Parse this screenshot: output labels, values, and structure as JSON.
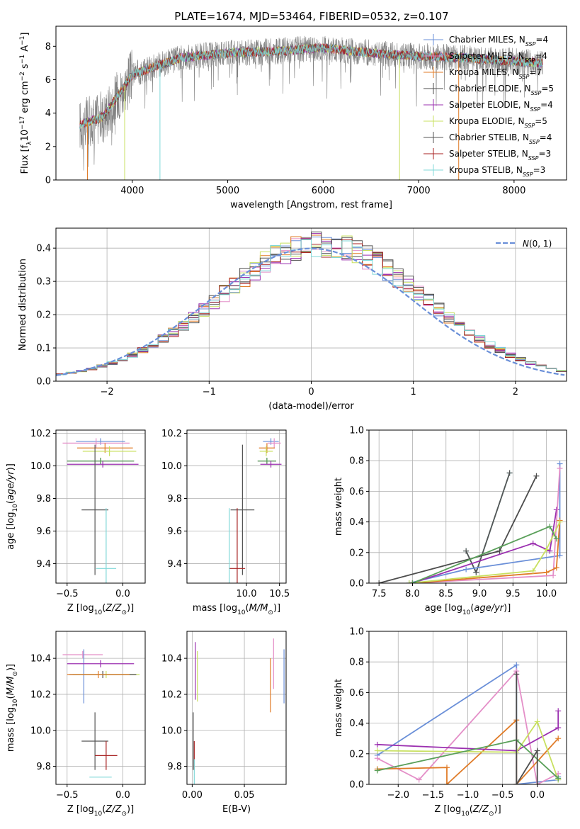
{
  "figure_title": "PLATE=1674, MJD=53464, FIBERID=0532, z=0.107",
  "colors": {
    "blue": "#6a8fd8",
    "pink": "#e48fc8",
    "orange": "#e07b27",
    "darkgray": "#4d4d4d",
    "purple": "#9b30b0",
    "yellowgreen": "#c8e060",
    "gray": "#555555",
    "red": "#a82222",
    "cyan": "#80d8d8",
    "green": "#5aa05a"
  },
  "chart_data": [
    {
      "id": "spectrum",
      "type": "line",
      "title": "PLATE=1674, MJD=53464, FIBERID=0532, z=0.107",
      "xlabel": "wavelength [Angstrom, rest frame]",
      "ylabel": "Flux [f_λ 10^-17 erg cm^-2 s^-1 A^-1]",
      "xlim": [
        3200,
        8550
      ],
      "ylim": [
        0,
        9.2
      ],
      "xticks": [
        "4000",
        "5000",
        "6000",
        "7000",
        "8000"
      ],
      "yticks": [
        "0",
        "2",
        "4",
        "6",
        "8"
      ],
      "continuum": {
        "x": [
          3450,
          3700,
          4000,
          4500,
          5000,
          5500,
          6000,
          6500,
          7000,
          7500,
          8000,
          8300
        ],
        "y": [
          3.3,
          3.8,
          6.3,
          7.3,
          7.6,
          7.7,
          7.9,
          7.6,
          7.4,
          7.3,
          7.1,
          7.0
        ]
      },
      "series": [
        {
          "name": "Chabrier MILES, N_SSP=4",
          "color": "blue"
        },
        {
          "name": "Salpeter MILES, N_SSP=4",
          "color": "pink"
        },
        {
          "name": "Kroupa MILES, N_SSP=7",
          "color": "orange"
        },
        {
          "name": "Chabrier ELODIE, N_SSP=5",
          "color": "darkgray"
        },
        {
          "name": "Salpeter ELODIE, N_SSP=4",
          "color": "purple"
        },
        {
          "name": "Kroupa ELODIE, N_SSP=5",
          "color": "yellowgreen"
        },
        {
          "name": "Chabrier STELIB, N_SSP=4",
          "color": "gray"
        },
        {
          "name": "Salpeter STELIB, N_SSP=3",
          "color": "red"
        },
        {
          "name": "Kroupa STELIB, N_SSP=3",
          "color": "cyan"
        }
      ],
      "legend": "right"
    },
    {
      "id": "residuals",
      "type": "histogram",
      "xlabel": "(data-model)/error",
      "ylabel": "Normed distribution",
      "xlim": [
        -2.5,
        2.5
      ],
      "ylim": [
        0,
        0.46
      ],
      "xticks": [
        "−2",
        "−1",
        "0",
        "1",
        "2"
      ],
      "yticks": [
        "0.0",
        "0.1",
        "0.2",
        "0.3",
        "0.4"
      ],
      "reference": {
        "name": "N(0,1)",
        "color": "blue"
      },
      "legend": "top-right"
    },
    {
      "id": "age-vs-Z",
      "type": "errorbar",
      "xlabel": "Z [log10(Z/Z⊙)]",
      "ylabel": "age  [log10(age/yr)]",
      "xlim": [
        -0.6,
        0.2
      ],
      "ylim": [
        9.28,
        10.22
      ],
      "xticks": [
        "−0.5",
        "0.0"
      ],
      "yticks": [
        "9.4",
        "9.6",
        "9.8",
        "10.0",
        "10.2"
      ],
      "points": [
        {
          "x": -0.2,
          "y": 10.15,
          "xerr": 0.22,
          "yerr": 0.02,
          "color": "blue"
        },
        {
          "x": -0.24,
          "y": 10.14,
          "xerr": 0.3,
          "yerr": 0.03,
          "color": "pink"
        },
        {
          "x": -0.16,
          "y": 10.11,
          "xerr": 0.25,
          "yerr": 0.03,
          "color": "orange"
        },
        {
          "x": -0.12,
          "y": 10.09,
          "xerr": 0.24,
          "yerr": 0.03,
          "color": "yellowgreen"
        },
        {
          "x": -0.2,
          "y": 10.03,
          "xerr": 0.3,
          "yerr": 0.02,
          "color": "darkgray"
        },
        {
          "x": -0.2,
          "y": 10.03,
          "xerr": 0.3,
          "yerr": 0.02,
          "color": "green"
        },
        {
          "x": -0.18,
          "y": 10.01,
          "xerr": 0.32,
          "yerr": 0.02,
          "color": "purple"
        },
        {
          "x": -0.25,
          "y": 9.73,
          "xerr": 0.12,
          "yerr": 0.4,
          "color": "gray"
        },
        {
          "x": -0.15,
          "y": 9.37,
          "xerr": 0.09,
          "yerr": 0.37,
          "color": "cyan"
        }
      ]
    },
    {
      "id": "age-vs-mass",
      "type": "errorbar",
      "xlabel": "mass [log10(M/M⊙)]",
      "ylabel": "",
      "xlim": [
        9.1,
        10.6
      ],
      "ylim": [
        9.28,
        10.22
      ],
      "xticks": [
        "10.0",
        "10.5"
      ],
      "yticks": [
        "9.4",
        "9.6",
        "9.8",
        "10.0",
        "10.2"
      ],
      "points": [
        {
          "x": 10.37,
          "y": 10.15,
          "xerr": 0.12,
          "yerr": 0.02,
          "color": "blue"
        },
        {
          "x": 10.42,
          "y": 10.14,
          "xerr": 0.1,
          "yerr": 0.03,
          "color": "pink"
        },
        {
          "x": 10.31,
          "y": 10.11,
          "xerr": 0.12,
          "yerr": 0.03,
          "color": "orange"
        },
        {
          "x": 10.3,
          "y": 10.09,
          "xerr": 0.1,
          "yerr": 0.03,
          "color": "yellowgreen"
        },
        {
          "x": 10.31,
          "y": 10.03,
          "xerr": 0.14,
          "yerr": 0.02,
          "color": "darkgray"
        },
        {
          "x": 10.31,
          "y": 10.03,
          "xerr": 0.14,
          "yerr": 0.02,
          "color": "green"
        },
        {
          "x": 10.37,
          "y": 10.01,
          "xerr": 0.16,
          "yerr": 0.02,
          "color": "purple"
        },
        {
          "x": 9.94,
          "y": 9.73,
          "xerr": 0.18,
          "yerr": 0.4,
          "color": "gray"
        },
        {
          "x": 9.86,
          "y": 9.37,
          "xerr": 0.12,
          "yerr": 0.37,
          "color": "red"
        },
        {
          "x": 9.74,
          "y": 9.37,
          "xerr": 0.0,
          "yerr": 0.37,
          "color": "cyan"
        }
      ]
    },
    {
      "id": "weight-vs-age",
      "type": "line",
      "xlabel": "age  [log10(age/yr)]",
      "ylabel": "mass weight",
      "xlim": [
        7.35,
        10.3
      ],
      "ylim": [
        0,
        1
      ],
      "xticks": [
        "7.5",
        "8.0",
        "8.5",
        "9.0",
        "9.5",
        "10.0"
      ],
      "yticks": [
        "0.0",
        "0.2",
        "0.4",
        "0.6",
        "0.8",
        "1.0"
      ],
      "series": [
        {
          "color": "cyan",
          "x": [
            8.8,
            8.95,
            9.45
          ],
          "y": [
            0.21,
            0.07,
            0.72
          ]
        },
        {
          "color": "gray",
          "x": [
            8.8,
            8.95,
            9.45
          ],
          "y": [
            0.21,
            0.07,
            0.72
          ]
        },
        {
          "color": "darkgray",
          "x": [
            7.5,
            9.3,
            9.85
          ],
          "y": [
            0.0,
            0.21,
            0.7
          ]
        },
        {
          "color": "blue",
          "x": [
            7.95,
            8.8,
            10.2,
            10.2
          ],
          "y": [
            0.0,
            0.09,
            0.18,
            0.78
          ]
        },
        {
          "color": "purple",
          "x": [
            8.0,
            9.8,
            10.05,
            10.15
          ],
          "y": [
            0.0,
            0.26,
            0.21,
            0.48
          ]
        },
        {
          "color": "pink",
          "x": [
            8.0,
            10.1,
            10.2
          ],
          "y": [
            0.0,
            0.05,
            0.75
          ]
        },
        {
          "color": "orange",
          "x": [
            8.0,
            10.0,
            10.15,
            10.2
          ],
          "y": [
            0.0,
            0.07,
            0.1,
            0.41
          ]
        },
        {
          "color": "yellowgreen",
          "x": [
            7.95,
            9.8,
            10.0,
            10.2
          ],
          "y": [
            0.0,
            0.08,
            0.22,
            0.4
          ]
        },
        {
          "color": "green",
          "x": [
            8.0,
            10.05,
            10.15
          ],
          "y": [
            0.0,
            0.37,
            0.29
          ]
        }
      ]
    },
    {
      "id": "mass-vs-Z",
      "type": "errorbar",
      "xlabel": "Z [log10(Z/Z⊙)]",
      "ylabel": "mass [log10(M/M⊙)]",
      "xlim": [
        -0.6,
        0.2
      ],
      "ylim": [
        9.7,
        10.55
      ],
      "xticks": [
        "−0.5",
        "0.0"
      ],
      "yticks": [
        "9.8",
        "10.0",
        "10.2",
        "10.4"
      ],
      "points": [
        {
          "x": -0.36,
          "y": 10.42,
          "xerr": 0.18,
          "yerr": 0.02,
          "color": "pink"
        },
        {
          "x": -0.35,
          "y": 10.3,
          "xerr": 0.0,
          "yerr": 0.15,
          "color": "blue"
        },
        {
          "x": -0.2,
          "y": 10.37,
          "xerr": 0.3,
          "yerr": 0.02,
          "color": "purple"
        },
        {
          "x": -0.15,
          "y": 10.31,
          "xerr": 0.3,
          "yerr": 0.02,
          "color": "yellowgreen"
        },
        {
          "x": -0.18,
          "y": 10.31,
          "xerr": 0.3,
          "yerr": 0.02,
          "color": "darkgray"
        },
        {
          "x": -0.22,
          "y": 10.31,
          "xerr": 0.28,
          "yerr": 0.02,
          "color": "orange"
        },
        {
          "x": -0.25,
          "y": 9.94,
          "xerr": 0.12,
          "yerr": 0.16,
          "color": "gray"
        },
        {
          "x": -0.15,
          "y": 9.86,
          "xerr": 0.1,
          "yerr": 0.08,
          "color": "red"
        },
        {
          "x": -0.2,
          "y": 9.74,
          "xerr": 0.1,
          "yerr": 0.0,
          "color": "cyan"
        }
      ]
    },
    {
      "id": "mass-vs-ebv",
      "type": "errorbar",
      "xlabel": "E(B-V)",
      "ylabel": "",
      "xlim": [
        -0.005,
        0.09
      ],
      "ylim": [
        9.7,
        10.55
      ],
      "xticks": [
        "0.00",
        "0.05"
      ],
      "yticks": [
        "9.8",
        "10.0",
        "10.2",
        "10.4"
      ],
      "points": [
        {
          "x": 0.003,
          "y": 10.33,
          "yerr": 0.16,
          "color": "purple"
        },
        {
          "x": 0.005,
          "y": 10.3,
          "yerr": 0.14,
          "color": "yellowgreen"
        },
        {
          "x": 0.075,
          "y": 10.25,
          "yerr": 0.15,
          "color": "orange"
        },
        {
          "x": 0.078,
          "y": 10.37,
          "yerr": 0.14,
          "color": "pink"
        },
        {
          "x": 0.088,
          "y": 10.3,
          "yerr": 0.15,
          "color": "blue"
        },
        {
          "x": 0.001,
          "y": 9.94,
          "yerr": 0.16,
          "color": "gray"
        },
        {
          "x": 0.002,
          "y": 9.86,
          "yerr": 0.08,
          "color": "red"
        },
        {
          "x": 0.002,
          "y": 9.74,
          "yerr": 0.1,
          "color": "cyan"
        }
      ]
    },
    {
      "id": "weight-vs-Z",
      "type": "line",
      "xlabel": "Z [log10(Z/Z⊙)]",
      "ylabel": "mass weight",
      "xlim": [
        -2.42,
        0.42
      ],
      "ylim": [
        0,
        1
      ],
      "xticks": [
        "−2.0",
        "−1.5",
        "−1.0",
        "−0.5",
        "0.0"
      ],
      "yticks": [
        "0.0",
        "0.2",
        "0.4",
        "0.6",
        "0.8",
        "1.0"
      ],
      "series": [
        {
          "color": "blue",
          "x": [
            -2.3,
            -0.3,
            -0.3,
            0.3,
            0.3
          ],
          "y": [
            0.19,
            0.78,
            0.0,
            0.03,
            0.05
          ]
        },
        {
          "color": "pink",
          "x": [
            -2.3,
            -1.7,
            -0.3,
            0.0,
            0.3
          ],
          "y": [
            0.17,
            0.03,
            0.74,
            0.0,
            0.07
          ]
        },
        {
          "color": "orange",
          "x": [
            -2.3,
            -1.3,
            -1.3,
            -0.3,
            -0.3,
            0.3
          ],
          "y": [
            0.1,
            0.11,
            0.0,
            0.42,
            0.0,
            0.3
          ]
        },
        {
          "color": "purple",
          "x": [
            -2.3,
            -0.3,
            0.3,
            0.3
          ],
          "y": [
            0.26,
            0.22,
            0.37,
            0.48
          ]
        },
        {
          "color": "yellowgreen",
          "x": [
            -2.3,
            -0.3,
            0.0,
            0.3
          ],
          "y": [
            0.22,
            0.21,
            0.41,
            0.03
          ]
        },
        {
          "color": "green",
          "x": [
            -2.3,
            -0.3,
            0.3
          ],
          "y": [
            0.09,
            0.29,
            0.04
          ]
        },
        {
          "color": "darkgray",
          "x": [
            -0.3,
            -0.3,
            0.0,
            0.0
          ],
          "y": [
            0.72,
            0.0,
            0.22,
            0.0
          ]
        }
      ]
    }
  ]
}
